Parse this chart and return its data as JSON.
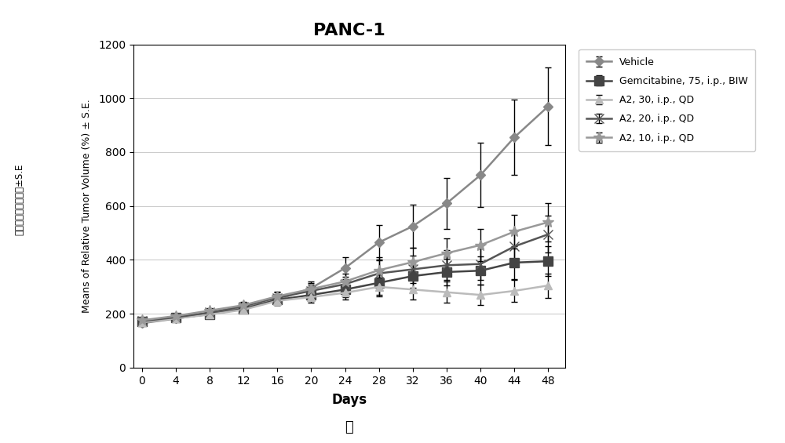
{
  "title": "PANC-1",
  "xlabel": "Days",
  "xlabel2": "天",
  "ylabel": "Means of Relative Tumor Volume (%) ± S.E.",
  "ylabel_chinese": "平均肿瘾大小（％）±S.E",
  "days": [
    0,
    4,
    8,
    12,
    16,
    20,
    24,
    28,
    32,
    36,
    40,
    44,
    48
  ],
  "series": {
    "Vehicle": {
      "values": [
        165,
        182,
        200,
        222,
        252,
        295,
        370,
        465,
        525,
        610,
        715,
        855,
        970
      ],
      "errors": [
        5,
        8,
        10,
        12,
        18,
        25,
        40,
        65,
        80,
        95,
        120,
        140,
        145
      ],
      "color": "#888888",
      "marker": "D",
      "markersize": 6,
      "linewidth": 1.8,
      "label": "Vehicle"
    },
    "Gemcitabine": {
      "values": [
        172,
        185,
        198,
        218,
        252,
        270,
        290,
        315,
        340,
        355,
        360,
        390,
        395
      ],
      "errors": [
        5,
        8,
        10,
        12,
        18,
        22,
        28,
        45,
        42,
        50,
        52,
        60,
        55
      ],
      "color": "#444444",
      "marker": "s",
      "markersize": 8,
      "linewidth": 1.8,
      "label": "Gemcitabine, 75, i.p., BIW"
    },
    "A2_30": {
      "values": [
        168,
        183,
        197,
        215,
        248,
        262,
        278,
        300,
        290,
        280,
        270,
        285,
        305
      ],
      "errors": [
        5,
        8,
        10,
        12,
        16,
        20,
        25,
        35,
        38,
        40,
        38,
        42,
        45
      ],
      "color": "#bbbbbb",
      "marker": "^",
      "markersize": 7,
      "linewidth": 1.8,
      "label": "A2, 30, i.p., QD"
    },
    "A2_20": {
      "values": [
        173,
        187,
        205,
        228,
        260,
        285,
        310,
        350,
        365,
        380,
        385,
        450,
        495
      ],
      "errors": [
        5,
        8,
        10,
        12,
        18,
        22,
        28,
        48,
        52,
        55,
        58,
        60,
        68
      ],
      "color": "#555555",
      "marker": "x",
      "markersize": 8,
      "linewidth": 1.8,
      "label": "A2, 20, i.p., QD"
    },
    "A2_10": {
      "values": [
        176,
        192,
        212,
        232,
        265,
        292,
        320,
        362,
        392,
        425,
        455,
        505,
        540
      ],
      "errors": [
        5,
        8,
        10,
        12,
        18,
        22,
        28,
        48,
        52,
        55,
        60,
        62,
        72
      ],
      "color": "#999999",
      "marker": "*",
      "markersize": 10,
      "linewidth": 1.8,
      "label": "A2, 10, i.p., QD"
    }
  },
  "series_order": [
    "Vehicle",
    "Gemcitabine",
    "A2_30",
    "A2_20",
    "A2_10"
  ],
  "ylim": [
    0,
    1200
  ],
  "yticks": [
    0,
    200,
    400,
    600,
    800,
    1000,
    1200
  ],
  "xticks": [
    0,
    4,
    8,
    12,
    16,
    20,
    24,
    28,
    32,
    36,
    40,
    44,
    48
  ],
  "background_color": "#ffffff",
  "plot_bg_color": "#ffffff",
  "grid_color": "#cccccc"
}
